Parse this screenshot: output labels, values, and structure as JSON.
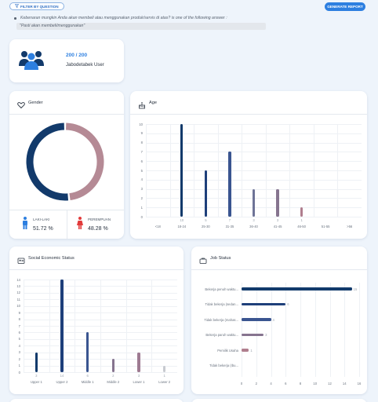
{
  "header": {
    "filter_label": "FILTER BY QUESTION",
    "generate_label": "GENERATE REPORT"
  },
  "question": {
    "text": "Kebenaran mungkin Anda akan membeli atau menggunakan produk/servis di atas? is one of the following answer :",
    "answer": "\"Pasti akan membeli/menggunakan\""
  },
  "summary": {
    "count": "200 / 200",
    "label": "Jabodetabek User"
  },
  "gender": {
    "title": "Gender",
    "male_label": "LAKI-LAKI",
    "male_value": "51.72 %",
    "female_label": "PEREMPUAN",
    "female_value": "48.28 %",
    "male_pct": 51.72,
    "female_pct": 48.28,
    "male_color": "#123a6b",
    "female_color": "#b58a95"
  },
  "age": {
    "title": "Age"
  },
  "ses": {
    "title": "Social Economic Status"
  },
  "job": {
    "title": "Job Status"
  },
  "chart_data": [
    {
      "type": "bar",
      "id": "age",
      "categories": [
        "<18",
        "18-24",
        "25-30",
        "31-35",
        "36-40",
        "41-45",
        "46-50",
        "51-55",
        ">56"
      ],
      "values": [
        0,
        10,
        5,
        7,
        3,
        3,
        1,
        0,
        0
      ],
      "ylim": [
        0,
        10
      ],
      "yticks": [
        "0",
        "1",
        "2",
        "3",
        "4",
        "5",
        "6",
        "7",
        "8",
        "9",
        "10"
      ],
      "colors": [
        "#123a6b",
        "#123a6b",
        "#1e3f7a",
        "#3a5590",
        "#6e7397",
        "#86748f",
        "#b07e8e",
        "#b07e8e",
        "#b07e8e"
      ]
    },
    {
      "type": "bar",
      "id": "ses",
      "categories": [
        "Upper 1",
        "Upper 2",
        "Middle 1",
        "Middle 2",
        "Lower 1",
        "Lower 2"
      ],
      "values": [
        3,
        14,
        6,
        2,
        3,
        1
      ],
      "ylim": [
        0,
        14
      ],
      "yticks": [
        "0",
        "1",
        "2",
        "3",
        "4",
        "5",
        "6",
        "7",
        "8",
        "9",
        "10",
        "11",
        "12",
        "13",
        "14"
      ],
      "colors": [
        "#123a6b",
        "#1e3f7a",
        "#3a5590",
        "#86748f",
        "#9e7a91",
        "#c7cad0"
      ]
    },
    {
      "type": "bar",
      "orientation": "horizontal",
      "id": "job",
      "categories": [
        "Bekerja penuh waktu...",
        "Tidak bekerja (sedan...",
        "Tidak bekerja (mahas...",
        "Bekerja paruh waktu...",
        "Pemilik Usaha",
        "Tidak bekerja (Ibu..."
      ],
      "values": [
        15,
        6,
        4,
        3,
        1,
        0
      ],
      "xlim": [
        0,
        16
      ],
      "xticks": [
        "0",
        "2",
        "4",
        "6",
        "8",
        "10",
        "12",
        "14",
        "16"
      ],
      "colors": [
        "#123a6b",
        "#1e3f7a",
        "#3a5590",
        "#86748f",
        "#b07e8e",
        "#c7cad0"
      ]
    }
  ]
}
